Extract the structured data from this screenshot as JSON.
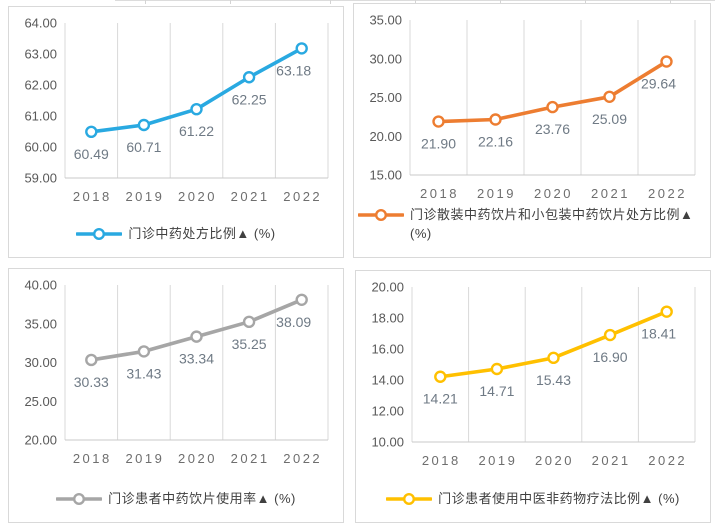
{
  "page": {
    "background": "#ffffff",
    "grid_color": "#d9d9d9",
    "axis_line_color": "#c9c9c9",
    "tick_label_color": "#595959",
    "year_label_color": "#6e6e6e",
    "data_label_color": "#6f7a85",
    "legend_text_color": "#404040"
  },
  "chart_data": [
    {
      "type": "line",
      "name": "outpatient-tcm-prescription-ratio",
      "legend": "门诊中药处方比例▲ (%)",
      "color": "#29A9E1",
      "categories": [
        "2018",
        "2019",
        "2020",
        "2021",
        "2022"
      ],
      "values": [
        60.49,
        60.71,
        61.22,
        62.25,
        63.18
      ],
      "labels": [
        "60.49",
        "60.71",
        "61.22",
        "62.25",
        "63.18"
      ],
      "ylim": [
        59,
        64
      ],
      "ytick_step": 1,
      "ytick_labels": [
        "59.00",
        "60.00",
        "61.00",
        "62.00",
        "63.00",
        "64.00"
      ],
      "grid": "vertical",
      "legend_position": "bottom"
    },
    {
      "type": "line",
      "name": "outpatient-bulk-and-small-package-herbal-pieces-prescription-ratio",
      "legend": "门诊散装中药饮片和小包装中药饮片处方比例▲ (%)",
      "color": "#ED7D31",
      "categories": [
        "2018",
        "2019",
        "2020",
        "2021",
        "2022"
      ],
      "values": [
        21.9,
        22.16,
        23.76,
        25.09,
        29.64
      ],
      "labels": [
        "21.90",
        "22.16",
        "23.76",
        "25.09",
        "29.64"
      ],
      "ylim": [
        15,
        35
      ],
      "ytick_step": 5,
      "ytick_labels": [
        "15.00",
        "20.00",
        "25.00",
        "30.00",
        "35.00"
      ],
      "grid": "vertical",
      "legend_position": "bottom"
    },
    {
      "type": "line",
      "name": "outpatient-patients-herbal-pieces-usage-rate",
      "legend": "门诊患者中药饮片使用率▲ (%)",
      "color": "#A6A6A6",
      "categories": [
        "2018",
        "2019",
        "2020",
        "2021",
        "2022"
      ],
      "values": [
        30.33,
        31.43,
        33.34,
        35.25,
        38.09
      ],
      "labels": [
        "30.33",
        "31.43",
        "33.34",
        "35.25",
        "38.09"
      ],
      "ylim": [
        20,
        40
      ],
      "ytick_step": 5,
      "ytick_labels": [
        "20.00",
        "25.00",
        "30.00",
        "35.00",
        "40.00"
      ],
      "grid": "vertical",
      "legend_position": "bottom"
    },
    {
      "type": "line",
      "name": "outpatient-patients-non-drug-tcm-therapy-ratio",
      "legend": "门诊患者使用中医非药物疗法比例▲ (%)",
      "color": "#FFC000",
      "categories": [
        "2018",
        "2019",
        "2020",
        "2021",
        "2022"
      ],
      "values": [
        14.21,
        14.71,
        15.43,
        16.9,
        18.41
      ],
      "labels": [
        "14.21",
        "14.71",
        "15.43",
        "16.90",
        "18.41"
      ],
      "ylim": [
        10,
        20
      ],
      "ytick_step": 2,
      "ytick_labels": [
        "10.00",
        "12.00",
        "14.00",
        "16.00",
        "18.00",
        "20.00"
      ],
      "grid": "vertical",
      "legend_position": "bottom"
    }
  ]
}
